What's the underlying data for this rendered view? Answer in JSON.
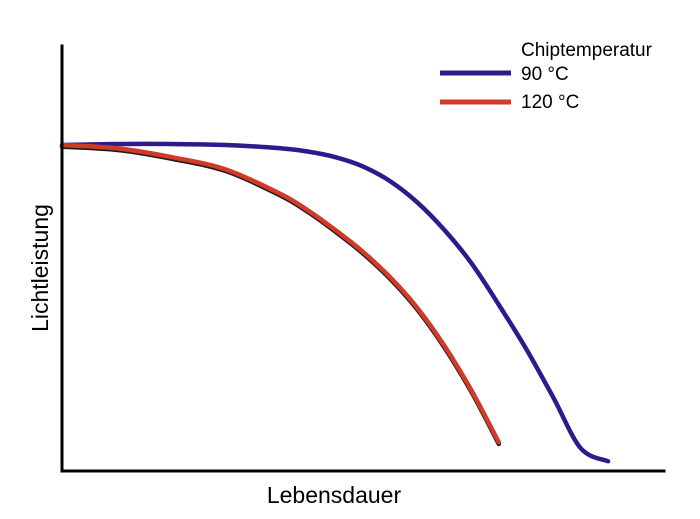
{
  "chart_data": {
    "type": "line",
    "title": "",
    "xlabel": "Lebensdauer",
    "ylabel": "Lichtleistung",
    "xlim": [
      0,
      100
    ],
    "ylim": [
      0,
      100
    ],
    "grid": false,
    "legend": {
      "title": "Chiptemperatur",
      "placement": "top-right"
    },
    "series": [
      {
        "name": "90 °C",
        "color": "#2e1a8c",
        "x": [
          0,
          10,
          20,
          30,
          40,
          45,
          50,
          55,
          60,
          65,
          70,
          75,
          80,
          85,
          90,
          95,
          100
        ],
        "y": [
          100,
          100.3,
          100.3,
          100,
          99,
          98,
          96.3,
          93.5,
          89,
          82.5,
          74,
          63.7,
          51,
          37.5,
          22.5,
          7,
          3
        ]
      },
      {
        "name": "120 °C",
        "color": "#d23a28",
        "x": [
          0,
          10,
          20,
          30,
          40,
          45,
          50,
          55,
          60,
          65,
          70,
          75,
          80
        ],
        "y": [
          100,
          99,
          96.3,
          92.5,
          85,
          80,
          74,
          67.4,
          59.6,
          50.2,
          38.5,
          24.7,
          8.8
        ]
      }
    ]
  }
}
